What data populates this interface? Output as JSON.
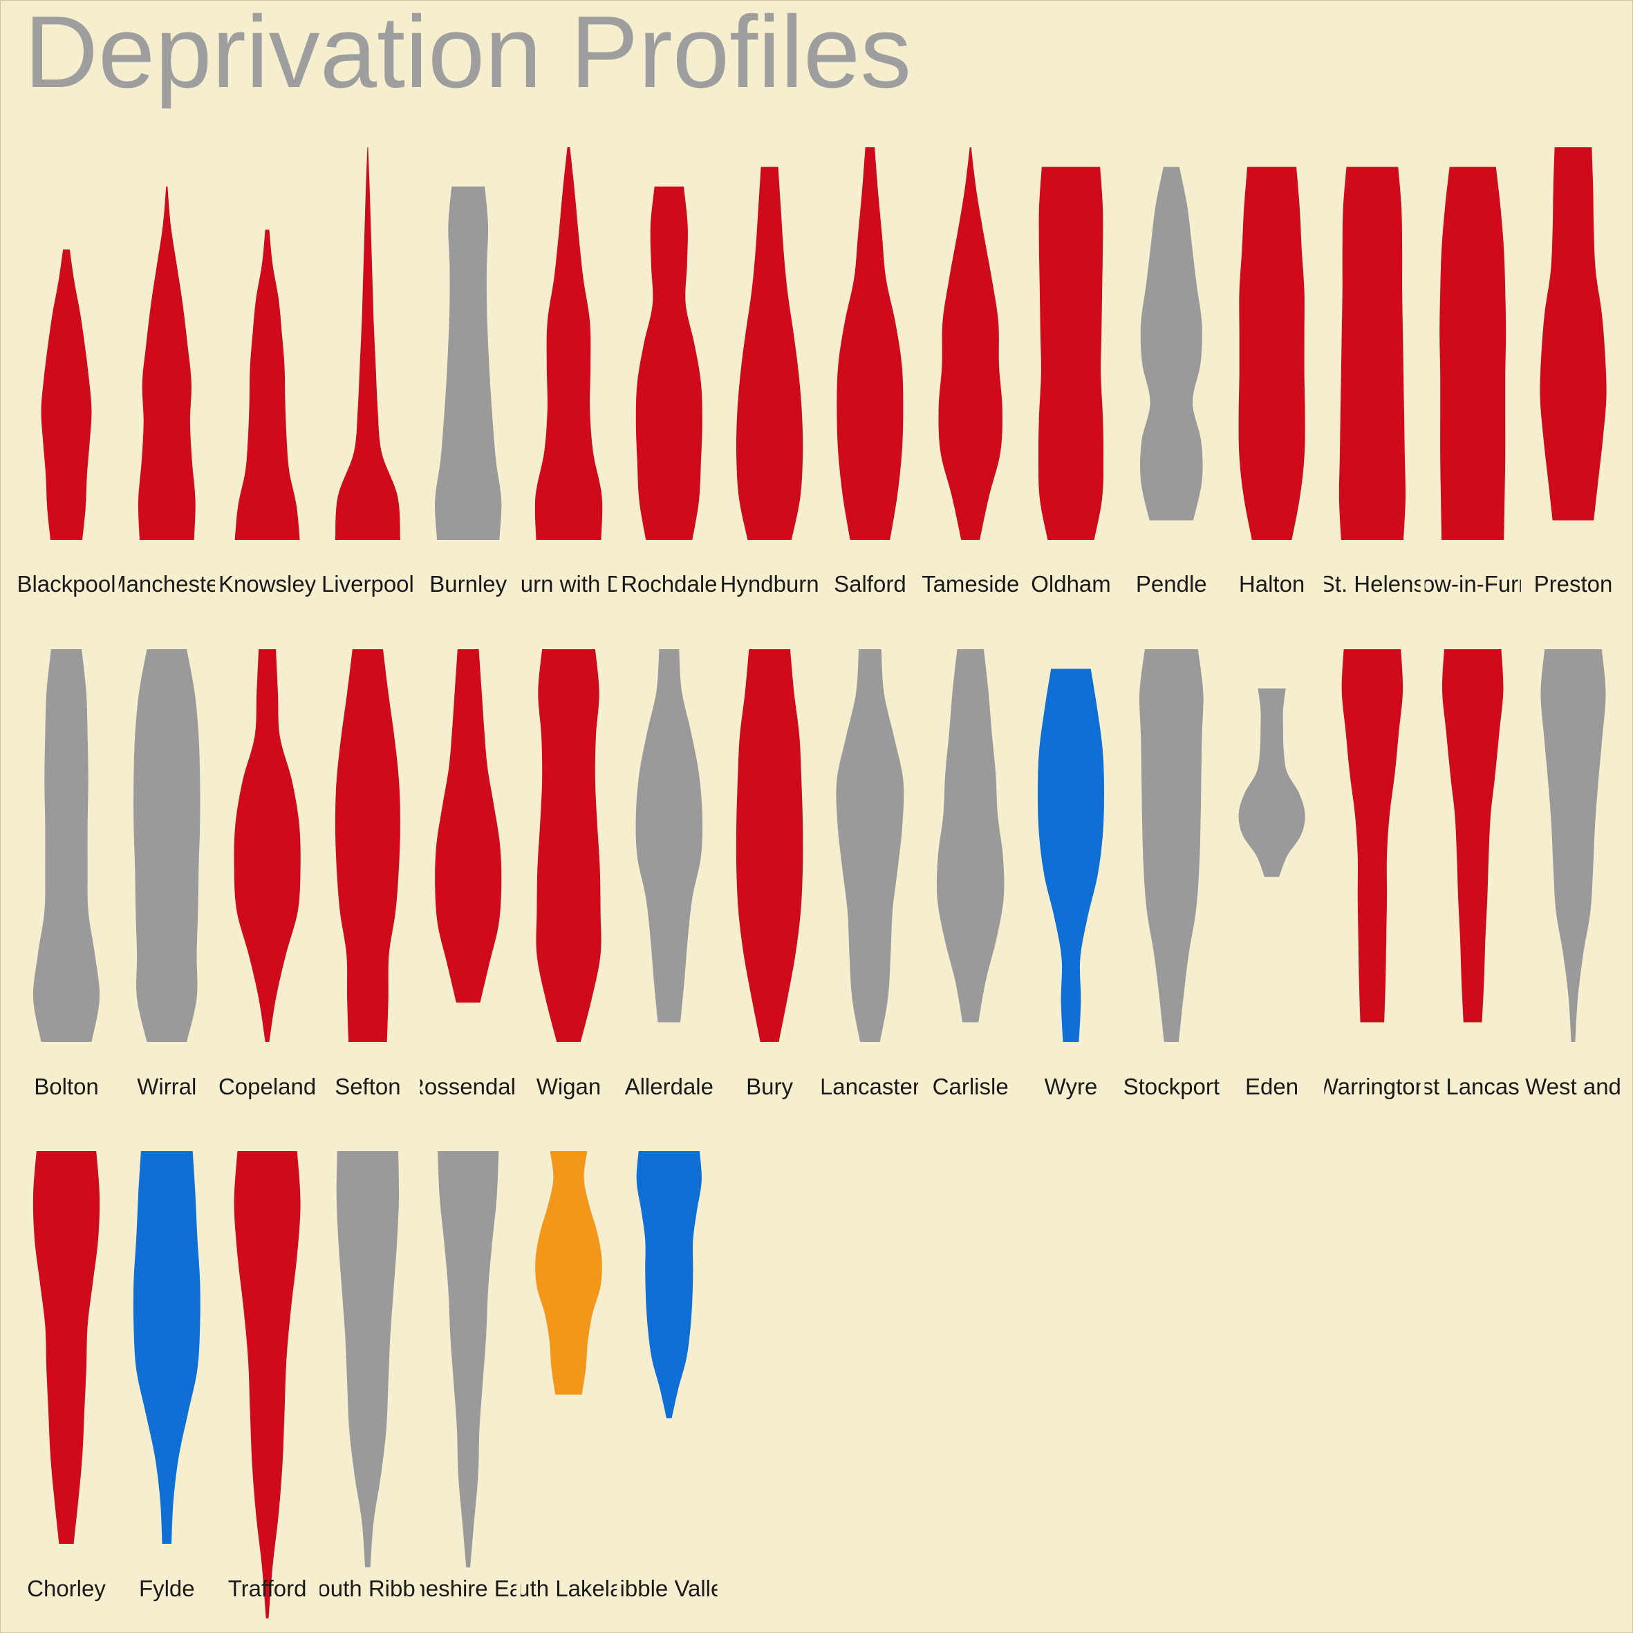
{
  "chart_data": {
    "type": "violin",
    "title": "Deprivation Profiles",
    "xlabel": "",
    "ylabel": "",
    "grid": false,
    "legend": "none",
    "colors": {
      "background": "#f5efcf",
      "red": "#cf0a1a",
      "grey": "#9a9a9a",
      "blue": "#0f6fd4",
      "orange": "#f39619"
    },
    "y_scale_note": "0 = most deprived (bottom), 1 = least deprived (top); no axis is printed",
    "panels": [
      {
        "label": "Blackpool",
        "color": "red",
        "range": [
          0,
          0.74
        ],
        "profile": [
          0.48,
          0.58,
          0.62,
          0.7,
          0.76,
          0.68,
          0.56,
          0.42,
          0.24,
          0.1
        ]
      },
      {
        "label": "Manchester",
        "color": "red",
        "range": [
          0,
          0.9
        ],
        "profile": [
          0.82,
          0.86,
          0.76,
          0.7,
          0.74,
          0.62,
          0.48,
          0.3,
          0.12,
          0.02
        ]
      },
      {
        "label": "Knowsley",
        "color": "red",
        "range": [
          0,
          0.79
        ],
        "profile": [
          0.98,
          0.88,
          0.66,
          0.58,
          0.54,
          0.52,
          0.44,
          0.34,
          0.16,
          0.06
        ]
      },
      {
        "label": "Liverpool",
        "color": "red",
        "range": [
          0,
          1.0
        ],
        "profile": [
          0.98,
          0.9,
          0.42,
          0.3,
          0.24,
          0.18,
          0.14,
          0.1,
          0.06,
          0.01
        ]
      },
      {
        "label": "Burnley",
        "color": "grey",
        "range": [
          0,
          0.9
        ],
        "profile": [
          0.94,
          1.0,
          0.84,
          0.74,
          0.66,
          0.6,
          0.56,
          0.56,
          0.6,
          0.5
        ]
      },
      {
        "label": "Blackburn with Darwen",
        "color": "red",
        "range": [
          0,
          1.0
        ],
        "profile": [
          0.98,
          1.0,
          0.74,
          0.64,
          0.66,
          0.64,
          0.44,
          0.3,
          0.18,
          0.04
        ]
      },
      {
        "label": "Rochdale",
        "color": "red",
        "range": [
          0,
          0.9
        ],
        "profile": [
          0.7,
          0.9,
          0.96,
          1.0,
          0.96,
          0.76,
          0.5,
          0.54,
          0.56,
          0.44
        ]
      },
      {
        "label": "Hyndburn",
        "color": "red",
        "range": [
          0,
          0.95
        ],
        "profile": [
          0.66,
          0.92,
          1.0,
          0.98,
          0.88,
          0.72,
          0.54,
          0.42,
          0.34,
          0.26
        ]
      },
      {
        "label": "Salford",
        "color": "red",
        "range": [
          0,
          1.0
        ],
        "profile": [
          0.6,
          0.82,
          0.96,
          1.0,
          0.96,
          0.76,
          0.48,
          0.36,
          0.24,
          0.14
        ]
      },
      {
        "label": "Tameside",
        "color": "red",
        "range": [
          0,
          1.0
        ],
        "profile": [
          0.28,
          0.56,
          0.9,
          0.96,
          0.86,
          0.84,
          0.64,
          0.4,
          0.18,
          0.02
        ]
      },
      {
        "label": "Oldham",
        "color": "red",
        "range": [
          0,
          0.95
        ],
        "profile": [
          0.7,
          0.94,
          0.98,
          0.96,
          0.9,
          0.92,
          0.94,
          0.96,
          0.96,
          0.88
        ]
      },
      {
        "label": "Pendle",
        "color": "grey",
        "range": [
          0.05,
          0.95
        ],
        "profile": [
          0.66,
          0.92,
          0.9,
          0.64,
          0.88,
          0.92,
          0.76,
          0.62,
          0.48,
          0.24
        ]
      },
      {
        "label": "Halton",
        "color": "red",
        "range": [
          0,
          0.95
        ],
        "profile": [
          0.6,
          0.84,
          0.98,
          1.0,
          0.98,
          0.98,
          0.98,
          0.9,
          0.84,
          0.74
        ]
      },
      {
        "label": "St. Helens",
        "color": "red",
        "range": [
          0,
          0.95
        ],
        "profile": [
          0.94,
          1.0,
          0.98,
          0.96,
          0.94,
          0.92,
          0.9,
          0.9,
          0.88,
          0.78
        ]
      },
      {
        "label": "Barrow-in-Furness",
        "color": "red",
        "range": [
          0,
          0.95
        ],
        "profile": [
          0.94,
          0.96,
          0.98,
          0.98,
          0.98,
          1.0,
          0.98,
          0.94,
          0.84,
          0.7
        ]
      },
      {
        "label": "Preston",
        "color": "red",
        "range": [
          0.05,
          1.0
        ],
        "profile": [
          0.62,
          0.76,
          0.9,
          1.0,
          0.96,
          0.86,
          0.68,
          0.62,
          0.6,
          0.56
        ]
      },
      {
        "label": "Bolton",
        "color": "grey",
        "range": [
          0,
          1.0
        ],
        "profile": [
          0.76,
          1.0,
          0.86,
          0.66,
          0.64,
          0.64,
          0.66,
          0.64,
          0.6,
          0.46
        ]
      },
      {
        "label": "Wirral",
        "color": "grey",
        "range": [
          0,
          1.0
        ],
        "profile": [
          0.6,
          0.9,
          0.9,
          0.94,
          0.96,
          1.0,
          1.0,
          0.96,
          0.84,
          0.6
        ]
      },
      {
        "label": "Copeland",
        "color": "red",
        "range": [
          0,
          1.0
        ],
        "profile": [
          0.06,
          0.26,
          0.56,
          0.92,
          1.0,
          0.96,
          0.74,
          0.38,
          0.32,
          0.26
        ]
      },
      {
        "label": "Sefton",
        "color": "red",
        "range": [
          0,
          1.0
        ],
        "profile": [
          0.58,
          0.62,
          0.64,
          0.84,
          0.94,
          0.98,
          0.94,
          0.8,
          0.62,
          0.46
        ]
      },
      {
        "label": "Rossendale",
        "color": "red",
        "range": [
          0.1,
          1.0
        ],
        "profile": [
          0.36,
          0.64,
          0.92,
          1.0,
          0.96,
          0.78,
          0.58,
          0.48,
          0.4,
          0.32
        ]
      },
      {
        "label": "Wigan",
        "color": "red",
        "range": [
          0,
          1.0
        ],
        "profile": [
          0.36,
          0.7,
          0.96,
          0.96,
          0.94,
          0.86,
          0.8,
          0.82,
          0.92,
          0.8
        ]
      },
      {
        "label": "Allerdale",
        "color": "grey",
        "range": [
          0.05,
          1.0
        ],
        "profile": [
          0.34,
          0.46,
          0.56,
          0.7,
          0.96,
          1.0,
          0.9,
          0.66,
          0.38,
          0.3
        ]
      },
      {
        "label": "Bury",
        "color": "red",
        "range": [
          0,
          1.0
        ],
        "profile": [
          0.28,
          0.54,
          0.78,
          0.94,
          1.0,
          1.0,
          0.96,
          0.9,
          0.74,
          0.62
        ]
      },
      {
        "label": "Lancaster",
        "color": "grey",
        "range": [
          0,
          1.0
        ],
        "profile": [
          0.3,
          0.54,
          0.62,
          0.68,
          0.84,
          0.98,
          1.0,
          0.72,
          0.42,
          0.34
        ]
      },
      {
        "label": "Carlisle",
        "color": "grey",
        "range": [
          0.05,
          1.0
        ],
        "profile": [
          0.24,
          0.46,
          0.78,
          1.0,
          0.98,
          0.82,
          0.76,
          0.64,
          0.54,
          0.4
        ]
      },
      {
        "label": "Wyre",
        "color": "blue",
        "range": [
          0,
          0.95
        ],
        "profile": [
          0.24,
          0.3,
          0.28,
          0.5,
          0.8,
          0.96,
          1.0,
          0.96,
          0.8,
          0.6
        ]
      },
      {
        "label": "Stockport",
        "color": "grey",
        "range": [
          0,
          1.0
        ],
        "profile": [
          0.22,
          0.36,
          0.52,
          0.74,
          0.84,
          0.88,
          0.9,
          0.92,
          0.96,
          0.8
        ]
      },
      {
        "label": "Eden",
        "color": "grey",
        "range": [
          0.42,
          0.9
        ],
        "profile": [
          0.22,
          0.46,
          0.88,
          1.0,
          0.82,
          0.46,
          0.36,
          0.34,
          0.34,
          0.42
        ]
      },
      {
        "label": "Warrington",
        "color": "red",
        "range": [
          0.05,
          1.0
        ],
        "profile": [
          0.36,
          0.4,
          0.42,
          0.44,
          0.44,
          0.52,
          0.68,
          0.8,
          0.92,
          0.86
        ]
      },
      {
        "label": "West Lancashire",
        "color": "red",
        "range": [
          0.05,
          1.0
        ],
        "profile": [
          0.28,
          0.34,
          0.38,
          0.44,
          0.48,
          0.54,
          0.68,
          0.8,
          0.92,
          0.86
        ]
      },
      {
        "label": "West and",
        "color": "grey",
        "range": [
          0,
          1.0
        ],
        "profile": [
          0.06,
          0.14,
          0.3,
          0.52,
          0.6,
          0.66,
          0.76,
          0.88,
          0.98,
          0.86
        ]
      },
      {
        "label": "Chorley",
        "color": "red",
        "range": [
          0,
          1.0
        ],
        "profile": [
          0.22,
          0.36,
          0.48,
          0.54,
          0.6,
          0.64,
          0.8,
          0.96,
          1.0,
          0.9
        ]
      },
      {
        "label": "Fylde",
        "color": "blue",
        "range": [
          0,
          1.0
        ],
        "profile": [
          0.14,
          0.2,
          0.36,
          0.64,
          0.92,
          1.0,
          1.0,
          0.92,
          0.86,
          0.78
        ]
      },
      {
        "label": "Trafford",
        "color": "red",
        "range": [
          -0.19,
          1.0
        ],
        "profile": [
          0.04,
          0.16,
          0.34,
          0.46,
          0.52,
          0.58,
          0.72,
          0.9,
          1.0,
          0.9
        ]
      },
      {
        "label": "South Ribble",
        "color": "grey",
        "range": [
          -0.06,
          1.0
        ],
        "profile": [
          0.08,
          0.18,
          0.4,
          0.56,
          0.62,
          0.68,
          0.78,
          0.88,
          0.94,
          0.92
        ]
      },
      {
        "label": "Cheshire East",
        "color": "grey",
        "range": [
          -0.06,
          1.0
        ],
        "profile": [
          0.06,
          0.18,
          0.3,
          0.34,
          0.44,
          0.54,
          0.6,
          0.72,
          0.86,
          0.92
        ]
      },
      {
        "label": "South Lakeland",
        "color": "orange",
        "range": [
          0.38,
          1.0
        ],
        "profile": [
          0.4,
          0.52,
          0.58,
          0.72,
          0.96,
          1.0,
          0.86,
          0.62,
          0.46,
          0.56
        ]
      },
      {
        "label": "Ribble Valley",
        "color": "blue",
        "range": [
          0.32,
          1.0
        ],
        "profile": [
          0.08,
          0.28,
          0.52,
          0.64,
          0.7,
          0.72,
          0.72,
          0.84,
          0.98,
          0.92
        ]
      }
    ]
  }
}
